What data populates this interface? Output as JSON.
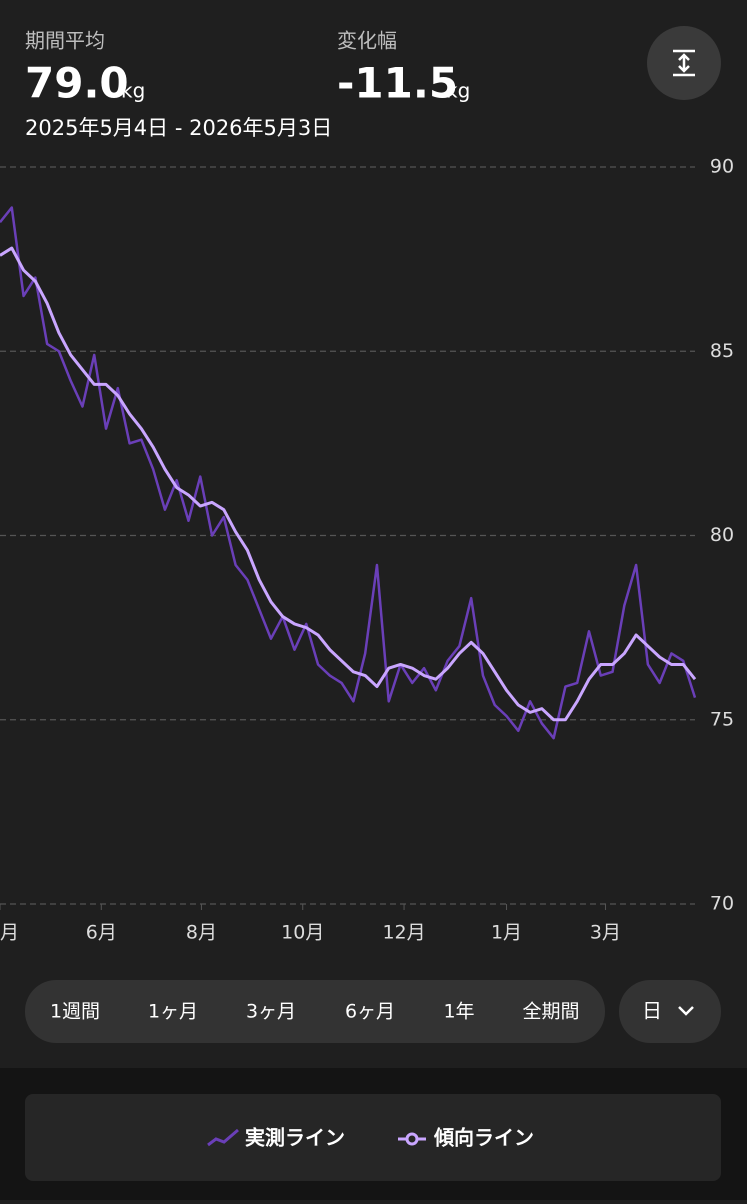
{
  "header": {
    "avg_label": "期間平均",
    "avg_value": "79.0",
    "avg_unit": "kg",
    "change_label": "変化幅",
    "change_value": "-11.5",
    "change_unit": "kg",
    "date_range": "2025年5月4日 - 2026年5月3日"
  },
  "chart_data": {
    "type": "line",
    "series": [
      {
        "name": "実測ライン",
        "color": "#6a3fb8",
        "values": [
          88.5,
          88.9,
          86.5,
          87.0,
          85.2,
          85.0,
          84.2,
          83.5,
          84.9,
          82.9,
          84.0,
          82.5,
          82.6,
          81.8,
          80.7,
          81.5,
          80.4,
          81.6,
          80.0,
          80.5,
          79.2,
          78.8,
          78.0,
          77.2,
          77.8,
          76.9,
          77.6,
          76.5,
          76.2,
          76.0,
          75.5,
          76.8,
          79.2,
          75.5,
          76.5,
          76.0,
          76.4,
          75.8,
          76.6,
          77.0,
          78.3,
          76.2,
          75.4,
          75.1,
          74.7,
          75.5,
          74.9,
          74.5,
          75.9,
          76.0,
          77.4,
          76.2,
          76.3,
          78.1,
          79.2,
          76.5,
          76.0,
          76.8,
          76.6,
          75.6
        ]
      },
      {
        "name": "傾向ライン",
        "color": "#c9a6ff",
        "values": [
          87.6,
          87.8,
          87.2,
          86.9,
          86.3,
          85.5,
          84.9,
          84.5,
          84.1,
          84.1,
          83.8,
          83.3,
          82.9,
          82.4,
          81.8,
          81.3,
          81.1,
          80.8,
          80.9,
          80.7,
          80.1,
          79.6,
          78.8,
          78.2,
          77.8,
          77.6,
          77.5,
          77.3,
          76.9,
          76.6,
          76.3,
          76.2,
          75.9,
          76.4,
          76.5,
          76.4,
          76.2,
          76.1,
          76.4,
          76.8,
          77.1,
          76.8,
          76.3,
          75.8,
          75.4,
          75.2,
          75.3,
          75.0,
          75.0,
          75.5,
          76.1,
          76.5,
          76.5,
          76.8,
          77.3,
          77.0,
          76.7,
          76.5,
          76.5,
          76.1
        ]
      }
    ],
    "xlim": [
      0,
      59
    ],
    "xticks": [
      {
        "value": 0,
        "label": "月"
      },
      {
        "value": 8.6,
        "label": "6月"
      },
      {
        "value": 17.1,
        "label": "8月"
      },
      {
        "value": 25.7,
        "label": "10月"
      },
      {
        "value": 34.3,
        "label": "12月"
      },
      {
        "value": 43.0,
        "label": "1月"
      },
      {
        "value": 51.4,
        "label": "3月"
      }
    ],
    "ylim": [
      70,
      90
    ],
    "yticks": [
      70,
      75,
      80,
      85,
      90
    ],
    "grid": true
  },
  "range_buttons": [
    "1週間",
    "1ヶ月",
    "3ヶ月",
    "6ヶ月",
    "1年",
    "全期間"
  ],
  "period_select": "日"
}
